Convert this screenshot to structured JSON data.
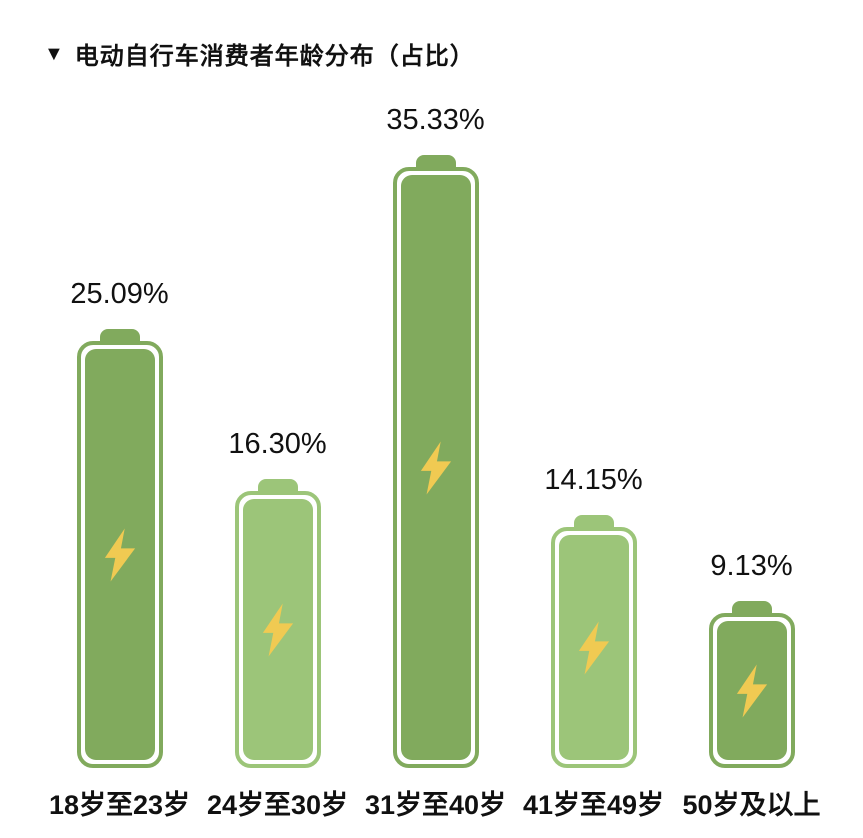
{
  "header": {
    "marker": "▼",
    "title": "电动自行车消费者年龄分布（占比）"
  },
  "chart_data": {
    "type": "bar",
    "title": "电动自行车消费者年龄分布（占比）",
    "categories": [
      "18岁至23岁",
      "24岁至30岁",
      "31岁至40岁",
      "41岁至49岁",
      "50岁及以上"
    ],
    "values": [
      25.09,
      16.3,
      35.33,
      14.15,
      9.13
    ],
    "value_labels": [
      "25.09%",
      "16.30%",
      "35.33%",
      "14.15%",
      "9.13%"
    ],
    "unit": "%",
    "bar_style": "battery-with-lightning-bolt",
    "bar_colors": [
      "#81aa5d",
      "#9cc579",
      "#81aa5d",
      "#9cc579",
      "#81aa5d"
    ],
    "bolt_color": "#f0ca52",
    "xlabel": "",
    "ylabel": "",
    "ylim": [
      0,
      40
    ],
    "grid": false,
    "legend": false,
    "orientation": "vertical",
    "value_label_position": "above-bar",
    "category_label_position": "below-bar"
  },
  "colors": {
    "background": "#ffffff",
    "text": "#111111",
    "battery_inner_gap": "#ffffff"
  }
}
